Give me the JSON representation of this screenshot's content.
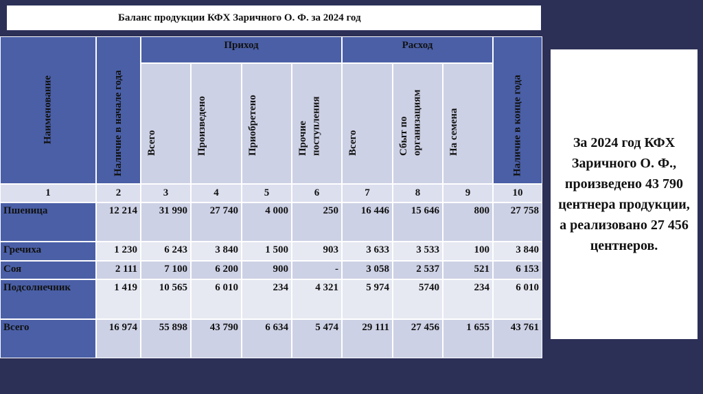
{
  "title": "Баланс продукции КФХ Заричного О. Ф. за 2024 год",
  "table": {
    "header": {
      "name": "Наименование",
      "start": "Наличие в начале года",
      "income": "Приход",
      "expense": "Расход",
      "end": "Наличие в конце года",
      "income_cols": [
        "Всего",
        "Произведено",
        "Приобретено",
        "Прочие поступления"
      ],
      "expense_cols": [
        "Всего",
        "Сбыт по организациям",
        "На семена"
      ]
    },
    "column_numbers": [
      1,
      2,
      3,
      4,
      5,
      6,
      7,
      8,
      9,
      10
    ],
    "rows": [
      [
        "Пшеница",
        "12 214",
        "31 990",
        "27 740",
        "4 000",
        "250",
        "16 446",
        "15 646",
        "800",
        "27 758"
      ],
      [
        "Гречиха",
        "1 230",
        "6 243",
        "3 840",
        "1 500",
        "903",
        "3 633",
        "3 533",
        "100",
        "3 840"
      ],
      [
        "Соя",
        "2 111",
        "7 100",
        "6 200",
        "900",
        "-",
        "3 058",
        "2 537",
        "521",
        "6 153"
      ],
      [
        "Подсолнечник",
        "1 419",
        "10 565",
        "6 010",
        "234",
        "4 321",
        "5 974",
        "5740",
        "234",
        "6 010"
      ],
      [
        "Всего",
        "16 974",
        "55 898",
        "43 790",
        "6 634",
        "5 474",
        "29 111",
        "27 456",
        "1 655",
        "43 761"
      ]
    ]
  },
  "note": "За 2024 год КФХ Заричного О. Ф., произведено 43 790 центнера продукции, а реализовано 27 456 центнеров."
}
